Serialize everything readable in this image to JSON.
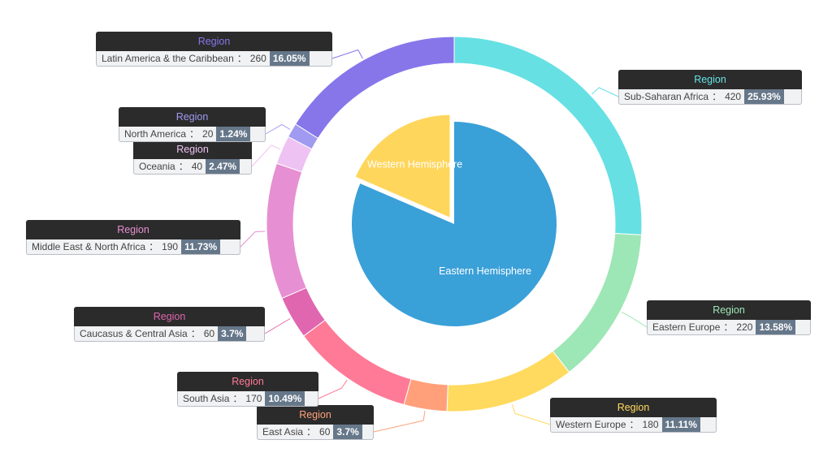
{
  "chart_data": {
    "type": "pie",
    "inner": {
      "series_name": "Hemisphere",
      "slices": [
        {
          "name": "Eastern Hemisphere",
          "value": 1320,
          "color": "#3aa0d8"
        },
        {
          "name": "Western Hemisphere",
          "value": 300,
          "color": "#ffd65c"
        }
      ]
    },
    "outer": {
      "series_name": "Region",
      "slices": [
        {
          "name": "Sub-Saharan Africa",
          "value": 420,
          "percent": "25.93%",
          "color": "#66e0e3"
        },
        {
          "name": "Eastern Europe",
          "value": 220,
          "percent": "13.58%",
          "color": "#9de6b5"
        },
        {
          "name": "Western Europe",
          "value": 180,
          "percent": "11.11%",
          "color": "#ffda5e"
        },
        {
          "name": "East Asia",
          "value": 60,
          "percent": "3.7%",
          "color": "#ffa07a"
        },
        {
          "name": "South Asia",
          "value": 170,
          "percent": "10.49%",
          "color": "#ff7a96"
        },
        {
          "name": "Caucasus & Central Asia",
          "value": 60,
          "percent": "3.7%",
          "color": "#e066b0"
        },
        {
          "name": "Middle East & North Africa",
          "value": 190,
          "percent": "11.73%",
          "color": "#e68fd2"
        },
        {
          "name": "Oceania",
          "value": 40,
          "percent": "2.47%",
          "color": "#eec2f2"
        },
        {
          "name": "North America",
          "value": 20,
          "percent": "1.24%",
          "color": "#a09af0"
        },
        {
          "name": "Latin America & the Caribbean",
          "value": 260,
          "percent": "16.05%",
          "color": "#8676ea"
        }
      ]
    }
  }
}
